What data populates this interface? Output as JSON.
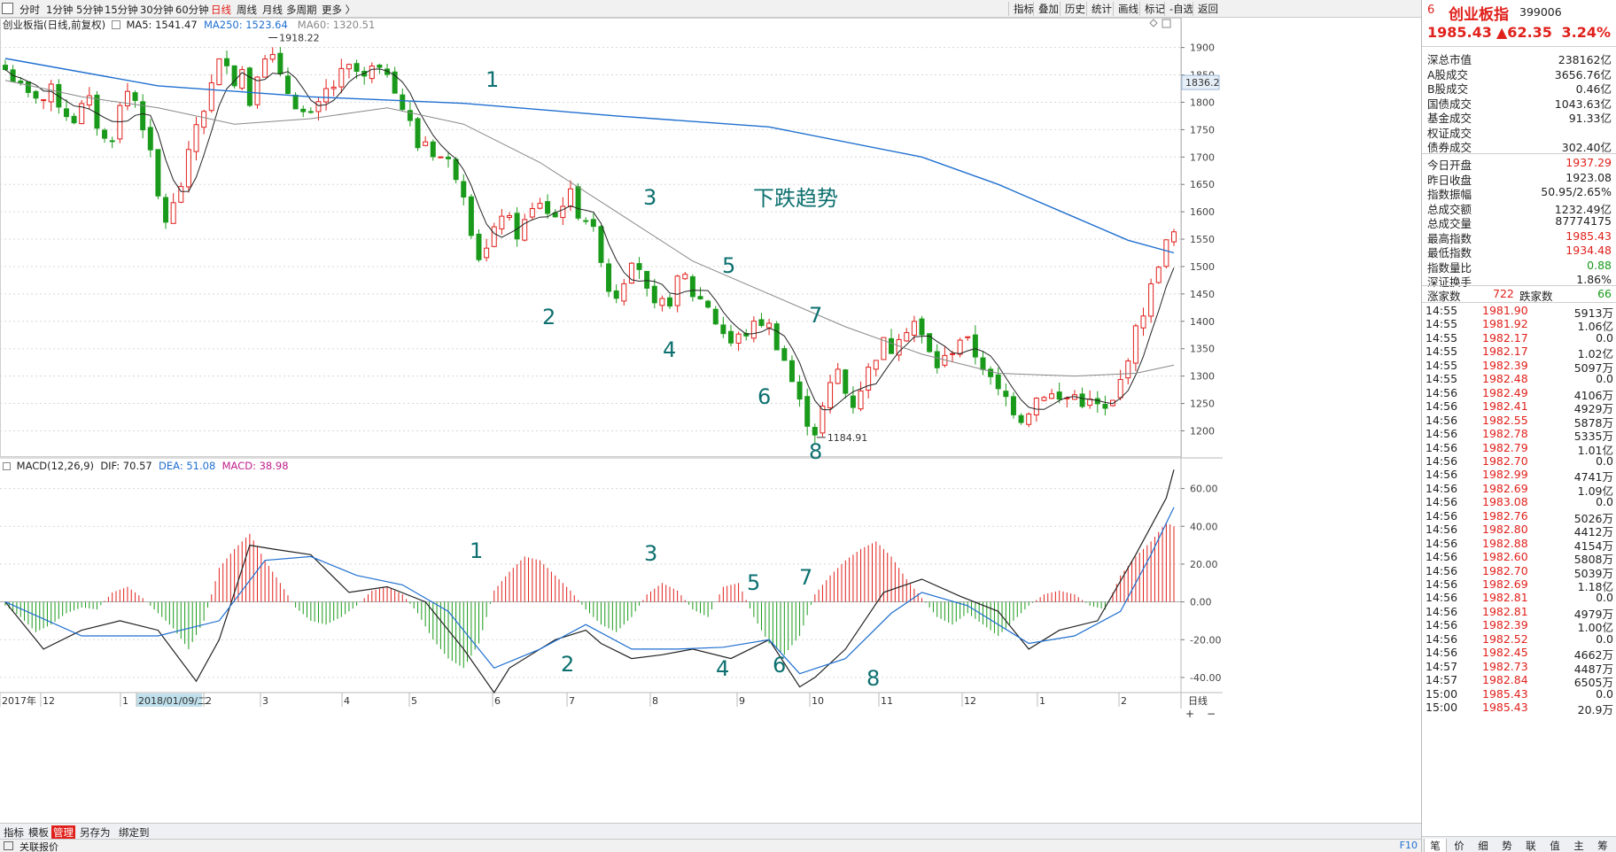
{
  "toolbar": {
    "timeframes": [
      "分时",
      "1分钟",
      "5分钟",
      "15分钟",
      "30分钟",
      "60分钟",
      "日线",
      "周线",
      "月线",
      "多周期",
      "更多 〉"
    ],
    "active_timeframe": 6,
    "tools": [
      "指标",
      "叠加",
      "历史",
      "统计",
      "画线",
      "标记",
      "-自选",
      "返回"
    ]
  },
  "chart": {
    "title": "创业板指(日线,前复权)",
    "ma5": "MA5: 1541.47",
    "ma250": "MA250: 1523.64",
    "ma60": "MA60: 1320.51",
    "price_label": "1836.2",
    "high_label": "1918.22",
    "low_label": "1184.91",
    "trend_note": "下跌趋势",
    "wave_labels": [
      "1",
      "2",
      "3",
      "4",
      "5",
      "6",
      "7",
      "8"
    ],
    "macd_title": "MACD(12,26,9)",
    "dif": "DIF: 70.57",
    "dea": "DEA: 51.08",
    "macd": "MACD: 38.98",
    "date_axis": [
      "2017年",
      "12",
      "1",
      "2018/01/09/二",
      "2",
      "3",
      "4",
      "5",
      "6",
      "7",
      "8",
      "9",
      "10",
      "11",
      "12",
      "1",
      "2"
    ],
    "axis_right_label": "日线",
    "colors": {
      "up": "#e0201b",
      "down": "#1a9a1a",
      "ma250": "#1f6fd0",
      "ma60": "#888888",
      "label": "#0e7070"
    }
  },
  "chart_data": {
    "type": "candlestick",
    "title": "创业板指(日线,前复权)",
    "price_ticks": [
      1900,
      1850,
      1800,
      1750,
      1700,
      1650,
      1600,
      1550,
      1500,
      1450,
      1400,
      1350,
      1300,
      1250,
      1200
    ],
    "price_range": [
      1170,
      1935
    ],
    "macd_ticks": [
      60,
      40,
      20,
      0,
      -20,
      -40
    ],
    "macd_range": [
      -48,
      72
    ],
    "price_path": [
      [
        0,
        1860
      ],
      [
        1,
        1845
      ],
      [
        2,
        1825
      ],
      [
        3,
        1810
      ],
      [
        4,
        1815
      ],
      [
        5,
        1805
      ],
      [
        6,
        1820
      ],
      [
        7,
        1800
      ],
      [
        8,
        1780
      ],
      [
        9,
        1770
      ],
      [
        10,
        1790
      ],
      [
        11,
        1800
      ],
      [
        12,
        1760
      ],
      [
        13,
        1730
      ],
      [
        14,
        1740
      ],
      [
        15,
        1790
      ],
      [
        16,
        1820
      ],
      [
        17,
        1805
      ],
      [
        18,
        1760
      ],
      [
        19,
        1700
      ],
      [
        20,
        1625
      ],
      [
        21,
        1585
      ],
      [
        22,
        1610
      ],
      [
        23,
        1650
      ],
      [
        24,
        1700
      ],
      [
        25,
        1760
      ],
      [
        26,
        1790
      ],
      [
        27,
        1830
      ],
      [
        28,
        1870
      ],
      [
        29,
        1880
      ],
      [
        30,
        1840
      ],
      [
        31,
        1860
      ],
      [
        32,
        1800
      ],
      [
        33,
        1860
      ],
      [
        34,
        1890
      ],
      [
        35,
        1880
      ],
      [
        36,
        1840
      ],
      [
        37,
        1820
      ],
      [
        38,
        1800
      ],
      [
        39,
        1780
      ],
      [
        40,
        1770
      ],
      [
        41,
        1790
      ],
      [
        42,
        1820
      ],
      [
        43,
        1830
      ],
      [
        44,
        1850
      ],
      [
        45,
        1860
      ],
      [
        46,
        1855
      ],
      [
        47,
        1840
      ],
      [
        48,
        1860
      ],
      [
        49,
        1850
      ],
      [
        50,
        1860
      ],
      [
        51,
        1830
      ],
      [
        52,
        1790
      ],
      [
        53,
        1760
      ],
      [
        54,
        1720
      ],
      [
        55,
        1730
      ],
      [
        56,
        1710
      ],
      [
        57,
        1700
      ],
      [
        58,
        1690
      ],
      [
        59,
        1670
      ],
      [
        60,
        1640
      ],
      [
        61,
        1570
      ],
      [
        62,
        1520
      ],
      [
        63,
        1530
      ],
      [
        64,
        1560
      ],
      [
        65,
        1600
      ],
      [
        66,
        1580
      ],
      [
        67,
        1560
      ],
      [
        68,
        1580
      ],
      [
        69,
        1600
      ],
      [
        70,
        1620
      ],
      [
        71,
        1600
      ],
      [
        72,
        1590
      ],
      [
        73,
        1620
      ],
      [
        74,
        1630
      ],
      [
        75,
        1600
      ],
      [
        76,
        1590
      ],
      [
        77,
        1560
      ],
      [
        78,
        1520
      ],
      [
        79,
        1460
      ],
      [
        80,
        1450
      ],
      [
        81,
        1480
      ],
      [
        82,
        1520
      ],
      [
        83,
        1500
      ],
      [
        84,
        1450
      ],
      [
        85,
        1420
      ],
      [
        86,
        1430
      ],
      [
        87,
        1440
      ],
      [
        88,
        1470
      ],
      [
        89,
        1480
      ],
      [
        90,
        1450
      ],
      [
        91,
        1440
      ],
      [
        92,
        1430
      ],
      [
        93,
        1400
      ],
      [
        94,
        1380
      ],
      [
        95,
        1360
      ],
      [
        96,
        1370
      ],
      [
        97,
        1380
      ],
      [
        98,
        1390
      ],
      [
        99,
        1400
      ],
      [
        100,
        1390
      ],
      [
        101,
        1360
      ],
      [
        102,
        1330
      ],
      [
        103,
        1290
      ],
      [
        104,
        1250
      ],
      [
        105,
        1220
      ],
      [
        106,
        1200
      ],
      [
        107,
        1240
      ],
      [
        108,
        1280
      ],
      [
        109,
        1310
      ],
      [
        110,
        1270
      ],
      [
        111,
        1250
      ],
      [
        112,
        1280
      ],
      [
        113,
        1310
      ],
      [
        114,
        1340
      ],
      [
        115,
        1360
      ],
      [
        116,
        1350
      ],
      [
        117,
        1380
      ],
      [
        118,
        1390
      ],
      [
        119,
        1400
      ],
      [
        120,
        1370
      ],
      [
        121,
        1340
      ],
      [
        122,
        1320
      ],
      [
        123,
        1330
      ],
      [
        124,
        1350
      ],
      [
        125,
        1370
      ],
      [
        126,
        1360
      ],
      [
        127,
        1340
      ],
      [
        128,
        1320
      ],
      [
        129,
        1290
      ],
      [
        130,
        1270
      ],
      [
        131,
        1260
      ],
      [
        132,
        1240
      ],
      [
        133,
        1225
      ],
      [
        134,
        1240
      ],
      [
        135,
        1260
      ],
      [
        136,
        1270
      ],
      [
        137,
        1265
      ],
      [
        138,
        1255
      ],
      [
        139,
        1260
      ],
      [
        140,
        1265
      ],
      [
        141,
        1255
      ],
      [
        142,
        1250
      ],
      [
        143,
        1245
      ],
      [
        144,
        1235
      ],
      [
        145,
        1250
      ],
      [
        146,
        1290
      ],
      [
        147,
        1340
      ],
      [
        148,
        1380
      ],
      [
        149,
        1420
      ],
      [
        150,
        1460
      ],
      [
        151,
        1510
      ],
      [
        152,
        1540
      ],
      [
        153,
        1560
      ]
    ],
    "ma250_path": [
      [
        0,
        1880
      ],
      [
        20,
        1830
      ],
      [
        40,
        1810
      ],
      [
        60,
        1798
      ],
      [
        80,
        1775
      ],
      [
        100,
        1755
      ],
      [
        120,
        1700
      ],
      [
        130,
        1650
      ],
      [
        140,
        1590
      ],
      [
        147,
        1548
      ],
      [
        153,
        1525
      ]
    ],
    "ma60_path": [
      [
        0,
        1840
      ],
      [
        10,
        1810
      ],
      [
        20,
        1790
      ],
      [
        30,
        1760
      ],
      [
        40,
        1770
      ],
      [
        50,
        1790
      ],
      [
        60,
        1760
      ],
      [
        70,
        1690
      ],
      [
        80,
        1600
      ],
      [
        90,
        1510
      ],
      [
        100,
        1450
      ],
      [
        110,
        1390
      ],
      [
        120,
        1340
      ],
      [
        130,
        1305
      ],
      [
        140,
        1300
      ],
      [
        148,
        1305
      ],
      [
        153,
        1320
      ]
    ],
    "dif_path": [
      [
        0,
        0
      ],
      [
        5,
        -25
      ],
      [
        10,
        -15
      ],
      [
        15,
        -10
      ],
      [
        20,
        -15
      ],
      [
        25,
        -42
      ],
      [
        28,
        -20
      ],
      [
        32,
        30
      ],
      [
        35,
        28
      ],
      [
        40,
        25
      ],
      [
        45,
        5
      ],
      [
        50,
        8
      ],
      [
        55,
        0
      ],
      [
        60,
        -25
      ],
      [
        64,
        -48
      ],
      [
        66,
        -35
      ],
      [
        72,
        -20
      ],
      [
        76,
        -15
      ],
      [
        78,
        -22
      ],
      [
        82,
        -30
      ],
      [
        86,
        -28
      ],
      [
        90,
        -25
      ],
      [
        95,
        -30
      ],
      [
        100,
        -20
      ],
      [
        104,
        -45
      ],
      [
        106,
        -40
      ],
      [
        110,
        -25
      ],
      [
        115,
        5
      ],
      [
        120,
        12
      ],
      [
        125,
        3
      ],
      [
        130,
        -5
      ],
      [
        134,
        -25
      ],
      [
        138,
        -15
      ],
      [
        143,
        -10
      ],
      [
        148,
        25
      ],
      [
        152,
        55
      ],
      [
        153,
        70
      ]
    ],
    "dea_path": [
      [
        0,
        0
      ],
      [
        10,
        -18
      ],
      [
        20,
        -18
      ],
      [
        28,
        -10
      ],
      [
        34,
        22
      ],
      [
        40,
        24
      ],
      [
        46,
        14
      ],
      [
        52,
        9
      ],
      [
        58,
        -5
      ],
      [
        64,
        -35
      ],
      [
        70,
        -25
      ],
      [
        76,
        -12
      ],
      [
        82,
        -25
      ],
      [
        88,
        -25
      ],
      [
        94,
        -24
      ],
      [
        100,
        -20
      ],
      [
        104,
        -38
      ],
      [
        110,
        -30
      ],
      [
        116,
        -6
      ],
      [
        120,
        5
      ],
      [
        126,
        -2
      ],
      [
        134,
        -22
      ],
      [
        140,
        -18
      ],
      [
        146,
        -5
      ],
      [
        150,
        25
      ],
      [
        153,
        50
      ]
    ],
    "macd_hist": [
      [
        0,
        -2
      ],
      [
        2,
        -8
      ],
      [
        4,
        -16
      ],
      [
        6,
        -12
      ],
      [
        8,
        -6
      ],
      [
        10,
        -3
      ],
      [
        12,
        -4
      ],
      [
        14,
        5
      ],
      [
        16,
        8
      ],
      [
        18,
        2
      ],
      [
        20,
        -6
      ],
      [
        22,
        -14
      ],
      [
        24,
        -25
      ],
      [
        26,
        -10
      ],
      [
        28,
        18
      ],
      [
        30,
        28
      ],
      [
        32,
        36
      ],
      [
        34,
        22
      ],
      [
        36,
        10
      ],
      [
        38,
        -3
      ],
      [
        40,
        -10
      ],
      [
        42,
        -12
      ],
      [
        44,
        -8
      ],
      [
        46,
        -2
      ],
      [
        48,
        6
      ],
      [
        50,
        8
      ],
      [
        52,
        4
      ],
      [
        54,
        -6
      ],
      [
        56,
        -20
      ],
      [
        58,
        -30
      ],
      [
        60,
        -35
      ],
      [
        62,
        -22
      ],
      [
        64,
        6
      ],
      [
        66,
        16
      ],
      [
        68,
        24
      ],
      [
        70,
        22
      ],
      [
        72,
        14
      ],
      [
        74,
        6
      ],
      [
        76,
        -4
      ],
      [
        78,
        -12
      ],
      [
        80,
        -16
      ],
      [
        82,
        -8
      ],
      [
        84,
        4
      ],
      [
        86,
        10
      ],
      [
        88,
        6
      ],
      [
        90,
        -4
      ],
      [
        92,
        -8
      ],
      [
        94,
        8
      ],
      [
        96,
        10
      ],
      [
        98,
        -8
      ],
      [
        100,
        -22
      ],
      [
        102,
        -28
      ],
      [
        104,
        -18
      ],
      [
        106,
        4
      ],
      [
        108,
        14
      ],
      [
        110,
        22
      ],
      [
        112,
        28
      ],
      [
        114,
        32
      ],
      [
        116,
        24
      ],
      [
        118,
        12
      ],
      [
        120,
        2
      ],
      [
        122,
        -8
      ],
      [
        124,
        -12
      ],
      [
        126,
        -6
      ],
      [
        128,
        -12
      ],
      [
        130,
        -18
      ],
      [
        132,
        -10
      ],
      [
        134,
        -2
      ],
      [
        136,
        4
      ],
      [
        138,
        6
      ],
      [
        140,
        4
      ],
      [
        142,
        -2
      ],
      [
        144,
        -4
      ],
      [
        146,
        14
      ],
      [
        148,
        24
      ],
      [
        150,
        32
      ],
      [
        152,
        42
      ],
      [
        153,
        40
      ]
    ]
  },
  "quote": {
    "index": "6",
    "name": "创业板指",
    "code": "399006",
    "price": "1985.43",
    "change": "▲62.35",
    "pct": "3.24%",
    "stats1": [
      [
        "深总市值",
        "238162亿"
      ],
      [
        "A股成交",
        "3656.76亿"
      ],
      [
        "B股成交",
        "0.46亿"
      ],
      [
        "国债成交",
        "1043.63亿"
      ],
      [
        "基金成交",
        "91.33亿"
      ],
      [
        "权证成交",
        ""
      ],
      [
        "债券成交",
        "302.40亿"
      ]
    ],
    "stats2": [
      [
        "今日开盘",
        "1937.29"
      ],
      [
        "昨日收盘",
        "1923.08"
      ],
      [
        "指数振幅",
        "50.95/2.65%"
      ],
      [
        "总成交额",
        "1232.49亿"
      ],
      [
        "总成交量",
        "87774175"
      ],
      [
        "最高指数",
        "1985.43"
      ],
      [
        "最低指数",
        "1934.48"
      ],
      [
        "指数量比",
        "0.88"
      ],
      [
        "深证换手",
        "1.86%"
      ]
    ],
    "stats2_colors": [
      "up",
      "",
      "",
      "",
      "",
      "up",
      "up",
      "dn",
      ""
    ],
    "adv_label": "涨家数",
    "adv": "722",
    "dec_label": "跌家数",
    "dec": "66",
    "ticks": [
      [
        "14:55",
        "1981.90",
        "5913万"
      ],
      [
        "14:55",
        "1981.92",
        "1.06亿"
      ],
      [
        "14:55",
        "1982.17",
        "0.0"
      ],
      [
        "14:55",
        "1982.17",
        "1.02亿"
      ],
      [
        "14:55",
        "1982.39",
        "5097万"
      ],
      [
        "14:55",
        "1982.48",
        "0.0"
      ],
      [
        "14:56",
        "1982.49",
        "4106万"
      ],
      [
        "14:56",
        "1982.41",
        "4929万"
      ],
      [
        "14:56",
        "1982.55",
        "5878万"
      ],
      [
        "14:56",
        "1982.78",
        "5335万"
      ],
      [
        "14:56",
        "1982.79",
        "1.01亿"
      ],
      [
        "14:56",
        "1982.70",
        "0.0"
      ],
      [
        "14:56",
        "1982.99",
        "4741万"
      ],
      [
        "14:56",
        "1982.69",
        "1.09亿"
      ],
      [
        "14:56",
        "1983.08",
        "0.0"
      ],
      [
        "14:56",
        "1982.76",
        "5026万"
      ],
      [
        "14:56",
        "1982.80",
        "4412万"
      ],
      [
        "14:56",
        "1982.88",
        "4154万"
      ],
      [
        "14:56",
        "1982.60",
        "5808万"
      ],
      [
        "14:56",
        "1982.70",
        "5039万"
      ],
      [
        "14:56",
        "1982.69",
        "1.18亿"
      ],
      [
        "14:56",
        "1982.81",
        "0.0"
      ],
      [
        "14:56",
        "1982.81",
        "4979万"
      ],
      [
        "14:56",
        "1982.39",
        "1.00亿"
      ],
      [
        "14:56",
        "1982.52",
        "0.0"
      ],
      [
        "14:56",
        "1982.45",
        "4662万"
      ],
      [
        "14:57",
        "1982.73",
        "4487万"
      ],
      [
        "14:57",
        "1982.84",
        "6505万"
      ],
      [
        "15:00",
        "1985.43",
        "0.0"
      ],
      [
        "15:00",
        "1985.43",
        "20.9万"
      ]
    ]
  },
  "bottom_tabs": [
    "指标",
    "模板",
    "管理",
    "另存为",
    "绑定到"
  ],
  "active_bottom_tab": 2,
  "status": {
    "text": "关联报价",
    "key": "F10"
  },
  "right_tabs": [
    "笔",
    "价",
    "细",
    "势",
    "联",
    "值",
    "主",
    "筹"
  ]
}
